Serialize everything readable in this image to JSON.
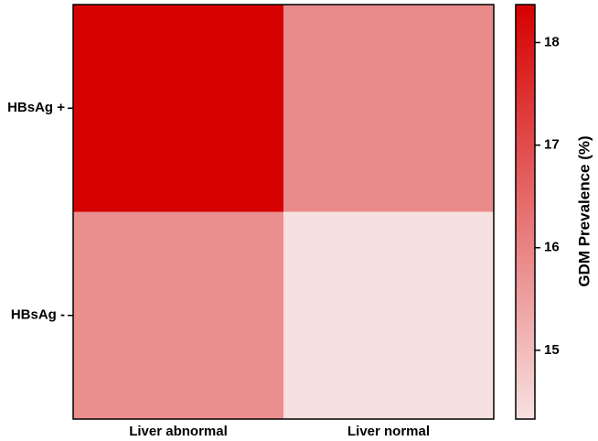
{
  "chart_data": {
    "type": "heatmap",
    "x_categories": [
      "Liver abnormal",
      "Liver normal"
    ],
    "y_categories": [
      "HBsAg +",
      "HBsAg -"
    ],
    "values": [
      [
        18.35,
        15.9
      ],
      [
        15.8,
        14.35
      ]
    ],
    "colormap": [
      "#f7e1e1",
      "#d60000"
    ],
    "clim": [
      14.33,
      18.37
    ],
    "cticks": [
      15,
      16,
      17,
      18
    ],
    "colorbar_label": "GDM Prevalence (%)"
  }
}
